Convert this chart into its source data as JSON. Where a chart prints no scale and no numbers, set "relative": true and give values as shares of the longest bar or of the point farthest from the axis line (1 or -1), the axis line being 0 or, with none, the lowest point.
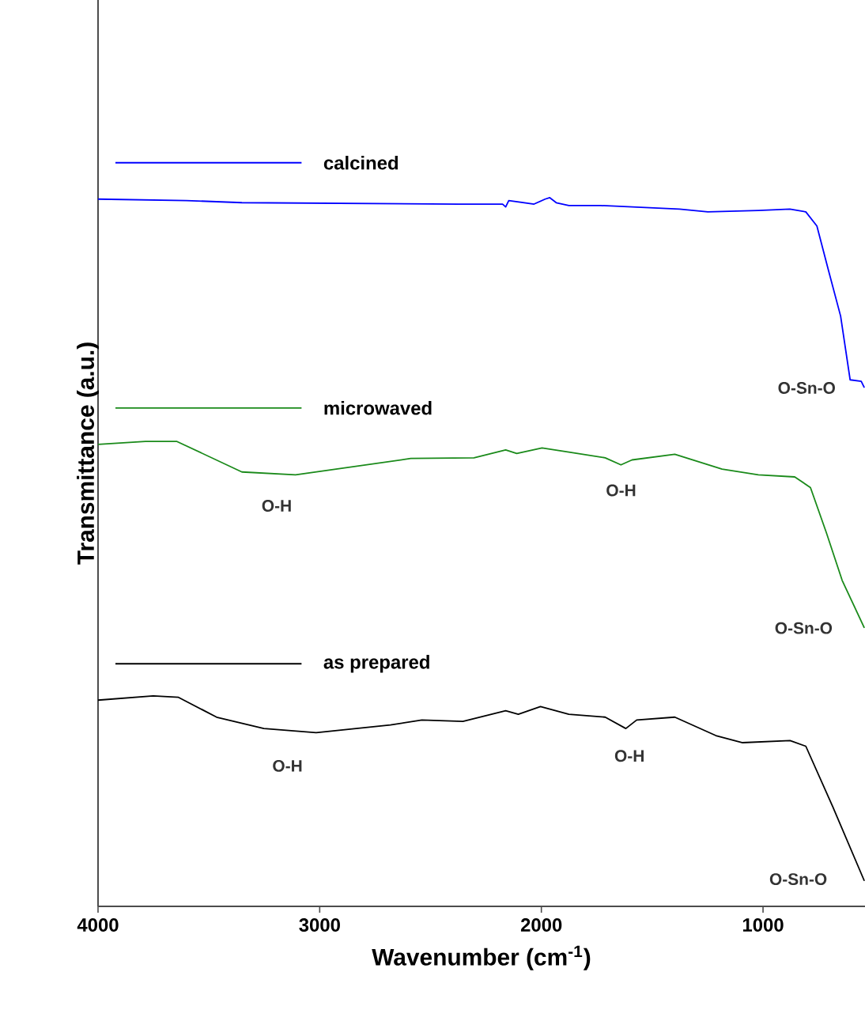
{
  "chart_data": {
    "type": "line",
    "xlabel": "Wavenumber (cm$^{-1}$)",
    "ylabel": "Transmittance (a.u.)",
    "relative": true,
    "legend": false,
    "marker": "none",
    "line_style": "solid",
    "xlim": [
      4000,
      540
    ],
    "xticks": [
      4000,
      3000,
      2000,
      1000
    ],
    "series": [
      {
        "name": "calcined",
        "color": "#0000ff",
        "x": [
          4000,
          3601,
          3351,
          2375,
          2175,
          2161,
          2147,
          2033,
          1983,
          1962,
          1933,
          1876,
          1733,
          1377,
          1249,
          1021,
          879,
          807,
          757,
          707,
          650,
          607,
          557,
          543
        ],
        "values": [
          0.998,
          0.996,
          0.993,
          0.991,
          0.991,
          0.987,
          0.996,
          0.991,
          0.998,
          1.0,
          0.993,
          0.989,
          0.989,
          0.984,
          0.98,
          0.982,
          0.984,
          0.98,
          0.96,
          0.9,
          0.833,
          0.743,
          0.741,
          0.732
        ]
      },
      {
        "name": "microwaved",
        "color": "#1a8a1a",
        "x": [
          4000,
          3786,
          3644,
          3351,
          3109,
          2589,
          2304,
          2161,
          2111,
          1997,
          1876,
          1712,
          1641,
          1591,
          1398,
          1185,
          1021,
          857,
          786,
          714,
          643,
          543
        ],
        "values": [
          0.652,
          0.656,
          0.656,
          0.613,
          0.609,
          0.632,
          0.633,
          0.644,
          0.639,
          0.647,
          0.641,
          0.633,
          0.623,
          0.63,
          0.638,
          0.617,
          0.609,
          0.606,
          0.591,
          0.527,
          0.46,
          0.393
        ]
      },
      {
        "name": "as prepared",
        "color": "#000000",
        "x": [
          4000,
          3751,
          3637,
          3465,
          3252,
          3016,
          2681,
          2539,
          2354,
          2161,
          2104,
          2004,
          1876,
          1712,
          1619,
          1570,
          1398,
          1213,
          1092,
          878,
          807,
          686,
          543
        ],
        "values": [
          0.291,
          0.297,
          0.295,
          0.267,
          0.251,
          0.245,
          0.256,
          0.263,
          0.261,
          0.276,
          0.271,
          0.282,
          0.271,
          0.267,
          0.251,
          0.263,
          0.267,
          0.241,
          0.231,
          0.234,
          0.226,
          0.141,
          0.036
        ]
      }
    ],
    "annotations": [
      "O-Sn-O",
      "O-H",
      "O-H",
      "O-Sn-O",
      "O-H",
      "O-H",
      "O-Sn-O"
    ]
  }
}
